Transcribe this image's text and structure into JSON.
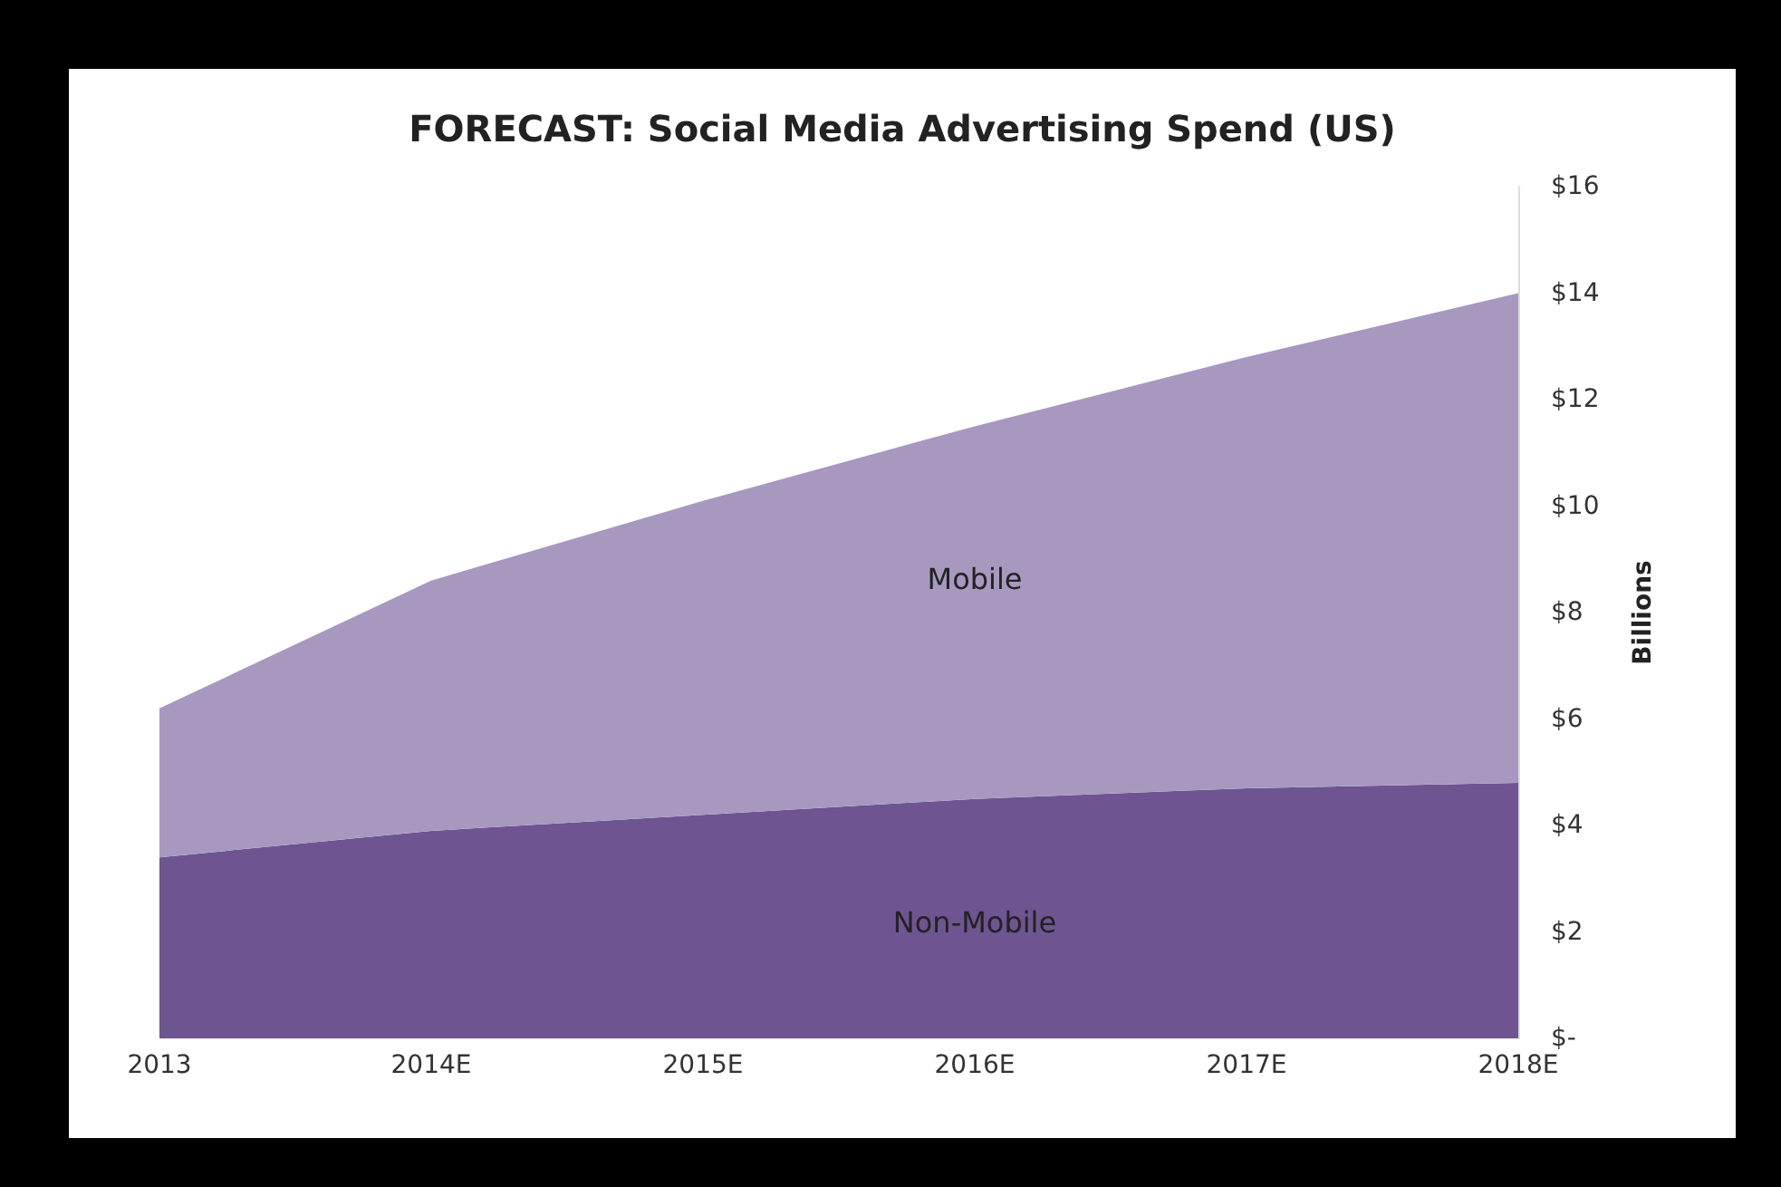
{
  "chart_data": {
    "type": "area",
    "stacked": true,
    "title": "FORECAST: Social Media Advertising Spend (US)",
    "ylabel": "Billions",
    "categories": [
      "2013",
      "2014E",
      "2015E",
      "2016E",
      "2017E",
      "2018E"
    ],
    "series": [
      {
        "name": "Non-Mobile",
        "color": "#6e5490",
        "values": [
          3.4,
          3.9,
          4.2,
          4.5,
          4.7,
          4.8
        ]
      },
      {
        "name": "Mobile",
        "color": "#a898c0",
        "values": [
          2.8,
          4.7,
          5.9,
          7.0,
          8.1,
          9.2
        ]
      }
    ],
    "ylim": [
      0,
      16
    ],
    "yticks": [
      {
        "value": 0,
        "label": "$-"
      },
      {
        "value": 2,
        "label": "$2"
      },
      {
        "value": 4,
        "label": "$4"
      },
      {
        "value": 6,
        "label": "$6"
      },
      {
        "value": 8,
        "label": "$8"
      },
      {
        "value": 10,
        "label": "$10"
      },
      {
        "value": 12,
        "label": "$12"
      },
      {
        "value": 14,
        "label": "$14"
      },
      {
        "value": 16,
        "label": "$16"
      }
    ],
    "grid": false,
    "legend": false
  }
}
